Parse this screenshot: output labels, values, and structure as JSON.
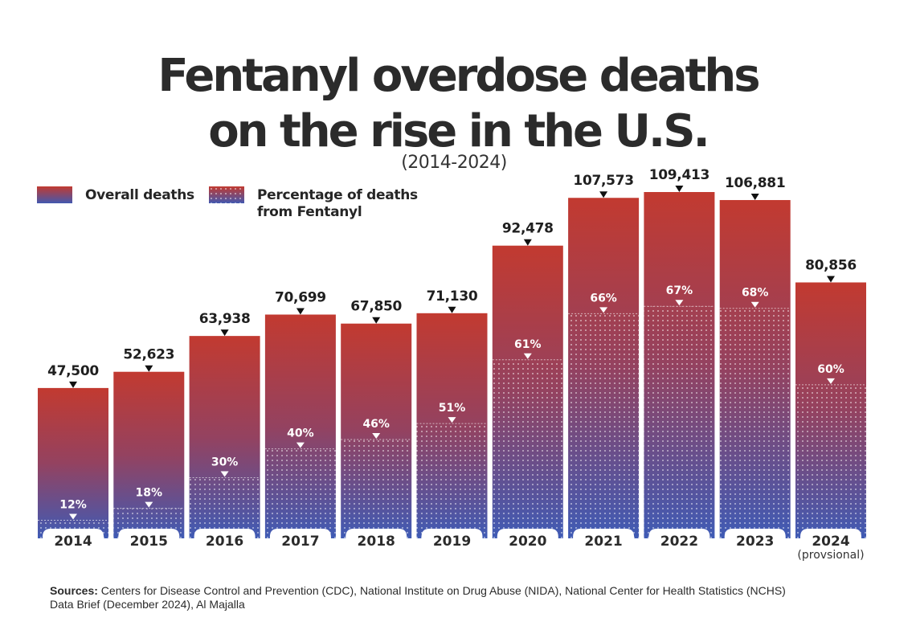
{
  "colors": {
    "bar_top": "#c23a30",
    "bar_mid": "#8c4460",
    "bar_bottom": "#3f5bb5",
    "dot": "#ffffff",
    "text": "#262626"
  },
  "chart_data": {
    "type": "bar",
    "title": "Fentanyl overdose deaths on the rise in the U.S.",
    "title_line1": "Fentanyl overdose deaths",
    "title_line2": "on the rise in the U.S.",
    "subtitle": "(2014-2024)",
    "xlabel": "",
    "ylabel": "",
    "ylim": [
      0,
      109413
    ],
    "grid": false,
    "legend_placement": "top-left",
    "legend": [
      {
        "name": "Overall deaths",
        "style": "gradient"
      },
      {
        "name": "Percentage of deaths from Fentanyl",
        "line1": "Percentage of deaths",
        "line2": "from Fentanyl",
        "style": "dotted-gradient"
      }
    ],
    "categories": [
      "2014",
      "2015",
      "2016",
      "2017",
      "2018",
      "2019",
      "2020",
      "2021",
      "2022",
      "2023",
      "2024"
    ],
    "category_notes": [
      "",
      "",
      "",
      "",
      "",
      "",
      "",
      "",
      "",
      "",
      "(provsional)"
    ],
    "series": [
      {
        "name": "Overall deaths",
        "values": [
          47500,
          52623,
          63938,
          70699,
          67850,
          71130,
          92478,
          107573,
          109413,
          106881,
          80856
        ],
        "labels": [
          "47,500",
          "52,623",
          "63,938",
          "70,699",
          "67,850",
          "71,130",
          "92,478",
          "107,573",
          "109,413",
          "106,881",
          "80,856"
        ]
      },
      {
        "name": "Percentage of deaths from Fentanyl",
        "values": [
          12,
          18,
          30,
          40,
          46,
          51,
          61,
          66,
          67,
          68,
          60
        ],
        "labels": [
          "12%",
          "18%",
          "30%",
          "40%",
          "46%",
          "51%",
          "61%",
          "66%",
          "67%",
          "68%",
          "60%"
        ],
        "unit": "%"
      }
    ]
  },
  "footer": {
    "sources_label": "Sources:",
    "sources_text": " Centers for Disease Control and Prevention (CDC), National Institute on Drug Abuse (NIDA), National Center for Health Statistics (NCHS) Data Brief (December 2024), Al Majalla"
  }
}
